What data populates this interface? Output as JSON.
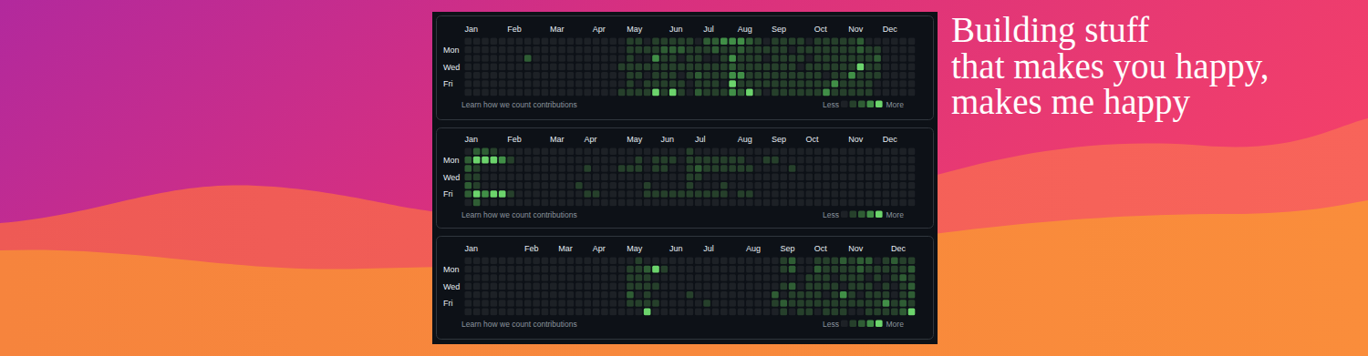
{
  "banner": {
    "lines": [
      "Building stuff",
      "that makes you happy,",
      "makes me happy"
    ]
  },
  "chart_data": [
    {
      "type": "heatmap",
      "categories": [
        "Jan",
        null,
        null,
        null,
        null,
        "Feb",
        null,
        null,
        null,
        null,
        "Mar",
        null,
        null,
        null,
        null,
        "Apr",
        null,
        null,
        null,
        "May",
        null,
        null,
        null,
        null,
        "Jun",
        null,
        null,
        null,
        "Jul",
        null,
        null,
        null,
        "Aug",
        null,
        null,
        null,
        "Sep",
        null,
        null,
        null,
        null,
        "Oct",
        null,
        null,
        null,
        "Nov",
        null,
        null,
        null,
        "Dec",
        null,
        null,
        null
      ],
      "rows": [
        null,
        "Mon",
        null,
        "Wed",
        null,
        "Fri",
        null
      ],
      "values": [
        [
          0,
          0,
          0,
          0,
          0,
          0,
          0,
          0,
          0,
          0,
          0,
          0,
          0,
          0,
          0,
          0,
          0,
          0,
          0,
          1,
          1,
          0,
          1,
          1,
          1,
          1,
          1,
          0,
          2,
          2,
          3,
          3,
          3,
          2,
          1,
          0,
          1,
          1,
          1,
          1,
          0,
          1,
          1,
          1,
          1,
          1,
          2,
          0,
          0,
          0,
          0,
          0,
          0
        ],
        [
          0,
          0,
          0,
          0,
          0,
          0,
          0,
          0,
          0,
          0,
          0,
          0,
          0,
          0,
          0,
          0,
          0,
          0,
          0,
          1,
          1,
          1,
          1,
          2,
          2,
          2,
          1,
          1,
          1,
          2,
          1,
          1,
          2,
          1,
          1,
          1,
          1,
          1,
          0,
          1,
          1,
          1,
          1,
          1,
          1,
          1,
          2,
          1,
          1,
          0,
          0,
          0,
          0
        ],
        [
          0,
          0,
          0,
          0,
          0,
          0,
          0,
          2,
          0,
          0,
          0,
          0,
          0,
          0,
          0,
          0,
          0,
          0,
          0,
          1,
          0,
          0,
          3,
          1,
          1,
          0,
          1,
          1,
          0,
          0,
          1,
          3,
          1,
          1,
          1,
          0,
          1,
          1,
          1,
          1,
          0,
          1,
          1,
          1,
          1,
          1,
          1,
          1,
          2,
          0,
          0,
          0,
          0
        ],
        [
          0,
          0,
          0,
          0,
          0,
          0,
          0,
          0,
          0,
          0,
          0,
          0,
          0,
          0,
          0,
          0,
          0,
          0,
          1,
          1,
          1,
          1,
          1,
          1,
          1,
          1,
          1,
          1,
          1,
          1,
          1,
          2,
          1,
          1,
          1,
          1,
          1,
          1,
          1,
          0,
          1,
          1,
          1,
          1,
          1,
          1,
          4,
          1,
          1,
          0,
          0,
          0,
          0
        ],
        [
          0,
          0,
          0,
          0,
          0,
          0,
          0,
          0,
          0,
          0,
          0,
          0,
          0,
          0,
          0,
          0,
          0,
          0,
          0,
          1,
          1,
          0,
          1,
          1,
          1,
          0,
          1,
          2,
          1,
          1,
          1,
          3,
          3,
          1,
          1,
          1,
          1,
          1,
          1,
          1,
          1,
          1,
          0,
          1,
          1,
          3,
          1,
          1,
          1,
          0,
          0,
          0,
          0
        ],
        [
          0,
          0,
          0,
          0,
          0,
          0,
          0,
          0,
          0,
          0,
          0,
          0,
          0,
          0,
          0,
          0,
          0,
          0,
          0,
          1,
          0,
          1,
          1,
          1,
          1,
          1,
          0,
          1,
          1,
          1,
          0,
          4,
          1,
          1,
          1,
          1,
          1,
          1,
          1,
          1,
          1,
          1,
          1,
          3,
          1,
          1,
          1,
          1,
          0,
          0,
          0,
          0,
          0
        ],
        [
          0,
          0,
          0,
          0,
          0,
          0,
          0,
          0,
          0,
          0,
          0,
          0,
          0,
          0,
          0,
          0,
          0,
          0,
          1,
          1,
          1,
          1,
          4,
          1,
          4,
          1,
          0,
          2,
          1,
          1,
          1,
          3,
          2,
          4,
          1,
          0,
          1,
          1,
          1,
          1,
          1,
          1,
          3,
          1,
          1,
          1,
          1,
          1,
          0,
          0,
          0,
          0,
          0
        ]
      ],
      "color_levels": [
        0,
        1,
        2,
        3,
        4
      ],
      "level_colors": [
        "#1d2126",
        "#26402b",
        "#2f5d34",
        "#418f47",
        "#6cd46c"
      ],
      "legend_labels": [
        "Less",
        "More"
      ],
      "footer": "Learn how we count contributions"
    },
    {
      "type": "heatmap",
      "categories": [
        "Jan",
        null,
        null,
        null,
        null,
        "Feb",
        null,
        null,
        null,
        null,
        "Mar",
        null,
        null,
        null,
        "Apr",
        null,
        null,
        null,
        null,
        "May",
        null,
        null,
        null,
        "Jun",
        null,
        null,
        null,
        "Jul",
        null,
        null,
        null,
        null,
        "Aug",
        null,
        null,
        null,
        "Sep",
        null,
        null,
        null,
        "Oct",
        null,
        null,
        null,
        null,
        "Nov",
        null,
        null,
        null,
        "Dec",
        null,
        null,
        null
      ],
      "rows": [
        null,
        "Mon",
        null,
        "Wed",
        null,
        "Fri",
        null
      ],
      "values": [
        [
          0,
          2,
          2,
          1,
          0,
          0,
          0,
          0,
          0,
          0,
          0,
          0,
          0,
          0,
          0,
          0,
          0,
          0,
          0,
          0,
          0,
          0,
          0,
          0,
          0,
          0,
          1,
          0,
          0,
          0,
          0,
          0,
          0,
          0,
          0,
          0,
          0,
          0,
          0,
          0,
          0,
          0,
          0,
          0,
          0,
          0,
          0,
          0,
          0,
          0,
          0,
          0,
          0
        ],
        [
          2,
          4,
          4,
          4,
          3,
          1,
          0,
          0,
          0,
          0,
          0,
          0,
          0,
          0,
          0,
          0,
          0,
          0,
          0,
          0,
          1,
          0,
          1,
          1,
          1,
          0,
          1,
          1,
          1,
          1,
          1,
          1,
          1,
          0,
          0,
          1,
          1,
          0,
          0,
          0,
          0,
          0,
          0,
          0,
          0,
          0,
          0,
          0,
          0,
          0,
          0,
          0,
          0
        ],
        [
          2,
          1,
          0,
          0,
          0,
          0,
          0,
          0,
          0,
          0,
          0,
          0,
          0,
          0,
          1,
          0,
          0,
          0,
          1,
          1,
          1,
          0,
          1,
          1,
          0,
          0,
          1,
          2,
          1,
          1,
          1,
          1,
          1,
          1,
          0,
          0,
          0,
          0,
          1,
          0,
          0,
          0,
          0,
          0,
          0,
          0,
          0,
          0,
          0,
          0,
          0,
          0,
          0
        ],
        [
          1,
          1,
          0,
          0,
          0,
          0,
          0,
          0,
          0,
          0,
          0,
          0,
          0,
          0,
          0,
          0,
          0,
          0,
          0,
          0,
          0,
          0,
          0,
          0,
          0,
          0,
          1,
          1,
          0,
          0,
          0,
          0,
          0,
          0,
          0,
          0,
          0,
          0,
          0,
          0,
          0,
          0,
          0,
          0,
          0,
          0,
          0,
          0,
          0,
          0,
          0,
          0,
          0
        ],
        [
          2,
          1,
          0,
          0,
          0,
          0,
          0,
          0,
          0,
          0,
          0,
          0,
          0,
          1,
          0,
          0,
          0,
          0,
          0,
          0,
          0,
          1,
          0,
          0,
          0,
          0,
          1,
          0,
          0,
          0,
          1,
          0,
          0,
          0,
          0,
          0,
          0,
          0,
          0,
          0,
          0,
          0,
          0,
          0,
          0,
          0,
          0,
          0,
          0,
          0,
          0,
          0,
          0
        ],
        [
          2,
          4,
          3,
          4,
          4,
          1,
          0,
          0,
          0,
          0,
          0,
          0,
          0,
          0,
          1,
          1,
          0,
          0,
          0,
          0,
          0,
          1,
          1,
          1,
          1,
          1,
          1,
          1,
          1,
          1,
          1,
          0,
          1,
          1,
          0,
          0,
          0,
          0,
          0,
          0,
          0,
          0,
          0,
          0,
          0,
          0,
          0,
          0,
          0,
          0,
          0,
          0,
          0
        ],
        [
          0,
          2,
          0,
          0,
          0,
          0,
          0,
          0,
          0,
          0,
          0,
          0,
          0,
          0,
          0,
          0,
          0,
          0,
          0,
          0,
          0,
          0,
          0,
          0,
          0,
          0,
          0,
          0,
          0,
          0,
          0,
          0,
          0,
          0,
          0,
          0,
          0,
          0,
          0,
          0,
          0,
          0,
          0,
          0,
          0,
          0,
          0,
          0,
          0,
          0,
          0,
          0,
          0
        ]
      ],
      "color_levels": [
        0,
        1,
        2,
        3,
        4
      ],
      "level_colors": [
        "#1d2126",
        "#26402b",
        "#2f5d34",
        "#418f47",
        "#6cd46c"
      ],
      "legend_labels": [
        "Less",
        "More"
      ],
      "footer": "Learn how we count contributions"
    },
    {
      "type": "heatmap",
      "categories": [
        "Jan",
        null,
        null,
        null,
        null,
        null,
        null,
        "Feb",
        null,
        null,
        null,
        "Mar",
        null,
        null,
        null,
        "Apr",
        null,
        null,
        null,
        "May",
        null,
        null,
        null,
        null,
        "Jun",
        null,
        null,
        null,
        "Jul",
        null,
        null,
        null,
        null,
        "Aug",
        null,
        null,
        null,
        "Sep",
        null,
        null,
        null,
        "Oct",
        null,
        null,
        null,
        "Nov",
        null,
        null,
        null,
        null,
        "Dec",
        null,
        null
      ],
      "rows": [
        null,
        "Mon",
        null,
        "Wed",
        null,
        "Fri",
        null
      ],
      "values": [
        [
          0,
          0,
          0,
          0,
          0,
          0,
          0,
          0,
          0,
          0,
          0,
          0,
          0,
          0,
          0,
          0,
          0,
          0,
          0,
          0,
          1,
          0,
          0,
          0,
          0,
          0,
          0,
          0,
          0,
          0,
          0,
          0,
          0,
          0,
          0,
          0,
          0,
          1,
          2,
          0,
          0,
          1,
          1,
          1,
          2,
          1,
          2,
          2,
          0,
          1,
          2,
          1,
          1
        ],
        [
          0,
          0,
          0,
          0,
          0,
          0,
          0,
          0,
          0,
          0,
          0,
          0,
          0,
          0,
          0,
          0,
          0,
          0,
          0,
          1,
          1,
          2,
          4,
          1,
          0,
          0,
          0,
          0,
          0,
          0,
          0,
          0,
          0,
          0,
          0,
          0,
          0,
          1,
          2,
          0,
          0,
          2,
          1,
          1,
          1,
          1,
          2,
          1,
          1,
          1,
          1,
          1,
          2
        ],
        [
          0,
          0,
          0,
          0,
          0,
          0,
          0,
          0,
          0,
          0,
          0,
          0,
          0,
          0,
          0,
          0,
          0,
          0,
          0,
          1,
          1,
          1,
          0,
          0,
          0,
          0,
          0,
          0,
          0,
          0,
          0,
          0,
          0,
          0,
          0,
          0,
          0,
          0,
          0,
          0,
          1,
          1,
          1,
          0,
          1,
          1,
          1,
          0,
          1,
          0,
          1,
          2,
          1
        ],
        [
          0,
          0,
          0,
          0,
          0,
          0,
          0,
          0,
          0,
          0,
          0,
          0,
          0,
          0,
          0,
          0,
          0,
          0,
          0,
          1,
          1,
          1,
          1,
          0,
          0,
          0,
          0,
          0,
          0,
          0,
          0,
          0,
          0,
          0,
          0,
          0,
          0,
          1,
          2,
          0,
          1,
          1,
          1,
          1,
          0,
          1,
          1,
          1,
          0,
          1,
          0,
          1,
          2
        ],
        [
          0,
          0,
          0,
          0,
          0,
          0,
          0,
          0,
          0,
          0,
          0,
          0,
          0,
          0,
          0,
          0,
          0,
          0,
          0,
          2,
          0,
          1,
          0,
          0,
          0,
          0,
          1,
          0,
          0,
          0,
          0,
          0,
          0,
          0,
          0,
          0,
          2,
          0,
          1,
          1,
          1,
          1,
          0,
          1,
          3,
          1,
          0,
          1,
          1,
          1,
          0,
          1,
          2
        ],
        [
          0,
          0,
          0,
          0,
          0,
          0,
          0,
          0,
          0,
          0,
          0,
          0,
          0,
          0,
          0,
          0,
          0,
          0,
          0,
          1,
          1,
          1,
          1,
          0,
          0,
          0,
          0,
          0,
          1,
          0,
          0,
          0,
          0,
          0,
          0,
          0,
          1,
          2,
          1,
          1,
          1,
          1,
          1,
          1,
          1,
          1,
          1,
          1,
          1,
          3,
          1,
          2,
          1
        ],
        [
          0,
          0,
          0,
          0,
          0,
          0,
          0,
          0,
          0,
          0,
          0,
          0,
          0,
          0,
          0,
          0,
          0,
          0,
          0,
          0,
          0,
          4,
          0,
          0,
          0,
          0,
          0,
          0,
          0,
          0,
          0,
          0,
          0,
          0,
          0,
          0,
          0,
          1,
          0,
          1,
          1,
          0,
          1,
          1,
          1,
          0,
          0,
          1,
          1,
          1,
          1,
          2,
          4
        ]
      ],
      "color_levels": [
        0,
        1,
        2,
        3,
        4
      ],
      "level_colors": [
        "#1d2126",
        "#26402b",
        "#2f5d34",
        "#418f47",
        "#6cd46c"
      ],
      "legend_labels": [
        "Less",
        "More"
      ],
      "footer": "Learn how we count contributions"
    }
  ]
}
